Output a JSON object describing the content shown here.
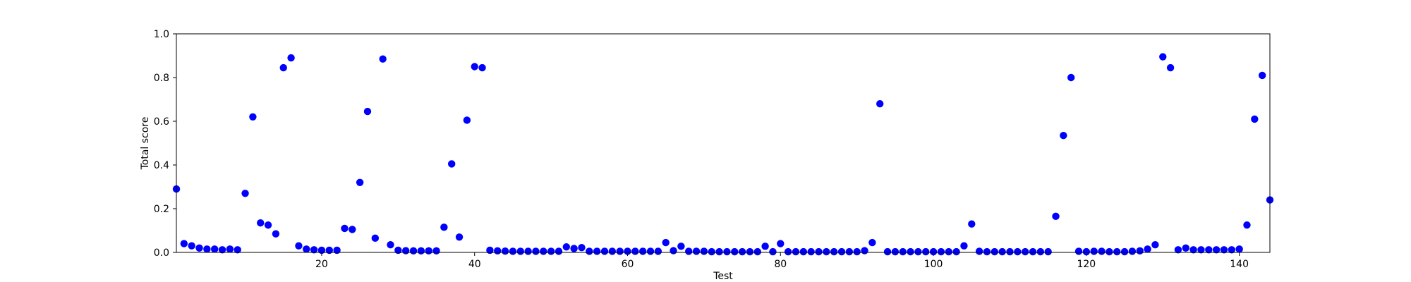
{
  "chart_data": {
    "type": "scatter",
    "xlabel": "Test",
    "ylabel": "Total score",
    "xlim": [
      1,
      144
    ],
    "ylim": [
      0,
      1.0
    ],
    "xticks": [
      20,
      40,
      60,
      80,
      100,
      120,
      140
    ],
    "yticks": [
      0.0,
      0.2,
      0.4,
      0.6,
      0.8,
      1.0
    ],
    "xtick_labels": [
      "20",
      "40",
      "60",
      "80",
      "100",
      "120",
      "140"
    ],
    "ytick_labels": [
      "0.0",
      "0.2",
      "0.4",
      "0.6",
      "0.8",
      "1.0"
    ],
    "grid": false,
    "marker_color": "#0000ff",
    "x": [
      1,
      2,
      3,
      4,
      5,
      6,
      7,
      8,
      9,
      10,
      11,
      12,
      13,
      14,
      15,
      16,
      17,
      18,
      19,
      20,
      21,
      22,
      23,
      24,
      25,
      26,
      27,
      28,
      29,
      30,
      31,
      32,
      33,
      34,
      35,
      36,
      37,
      38,
      39,
      40,
      41,
      42,
      43,
      44,
      45,
      46,
      47,
      48,
      49,
      50,
      51,
      52,
      53,
      54,
      55,
      56,
      57,
      58,
      59,
      60,
      61,
      62,
      63,
      64,
      65,
      66,
      67,
      68,
      69,
      70,
      71,
      72,
      73,
      74,
      75,
      76,
      77,
      78,
      79,
      80,
      81,
      82,
      83,
      84,
      85,
      86,
      87,
      88,
      89,
      90,
      91,
      92,
      93,
      94,
      95,
      96,
      97,
      98,
      99,
      100,
      101,
      102,
      103,
      104,
      105,
      106,
      107,
      108,
      109,
      110,
      111,
      112,
      113,
      114,
      115,
      116,
      117,
      118,
      119,
      120,
      121,
      122,
      123,
      124,
      125,
      126,
      127,
      128,
      129,
      130,
      131,
      132,
      133,
      134,
      135,
      136,
      137,
      138,
      139,
      140,
      141,
      142,
      143,
      144
    ],
    "y": [
      0.29,
      0.04,
      0.03,
      0.02,
      0.015,
      0.015,
      0.012,
      0.015,
      0.012,
      0.27,
      0.62,
      0.135,
      0.125,
      0.085,
      0.845,
      0.89,
      0.03,
      0.015,
      0.012,
      0.01,
      0.01,
      0.01,
      0.11,
      0.105,
      0.32,
      0.645,
      0.065,
      0.885,
      0.035,
      0.01,
      0.008,
      0.007,
      0.007,
      0.007,
      0.007,
      0.115,
      0.405,
      0.07,
      0.605,
      0.85,
      0.845,
      0.01,
      0.007,
      0.006,
      0.005,
      0.005,
      0.005,
      0.005,
      0.005,
      0.005,
      0.005,
      0.025,
      0.018,
      0.022,
      0.005,
      0.005,
      0.005,
      0.005,
      0.005,
      0.005,
      0.005,
      0.005,
      0.005,
      0.005,
      0.045,
      0.008,
      0.028,
      0.005,
      0.005,
      0.005,
      0.003,
      0.003,
      0.003,
      0.003,
      0.003,
      0.003,
      0.003,
      0.028,
      0.003,
      0.04,
      0.003,
      0.003,
      0.003,
      0.003,
      0.003,
      0.003,
      0.003,
      0.003,
      0.003,
      0.003,
      0.008,
      0.045,
      0.68,
      0.003,
      0.003,
      0.003,
      0.003,
      0.003,
      0.003,
      0.003,
      0.003,
      0.003,
      0.003,
      0.03,
      0.13,
      0.005,
      0.003,
      0.003,
      0.003,
      0.003,
      0.003,
      0.003,
      0.003,
      0.003,
      0.003,
      0.165,
      0.535,
      0.8,
      0.005,
      0.003,
      0.005,
      0.005,
      0.003,
      0.003,
      0.003,
      0.005,
      0.007,
      0.015,
      0.035,
      0.895,
      0.845,
      0.012,
      0.02,
      0.012,
      0.012,
      0.012,
      0.012,
      0.012,
      0.012,
      0.015,
      0.125,
      0.61,
      0.81,
      0.24
    ]
  }
}
